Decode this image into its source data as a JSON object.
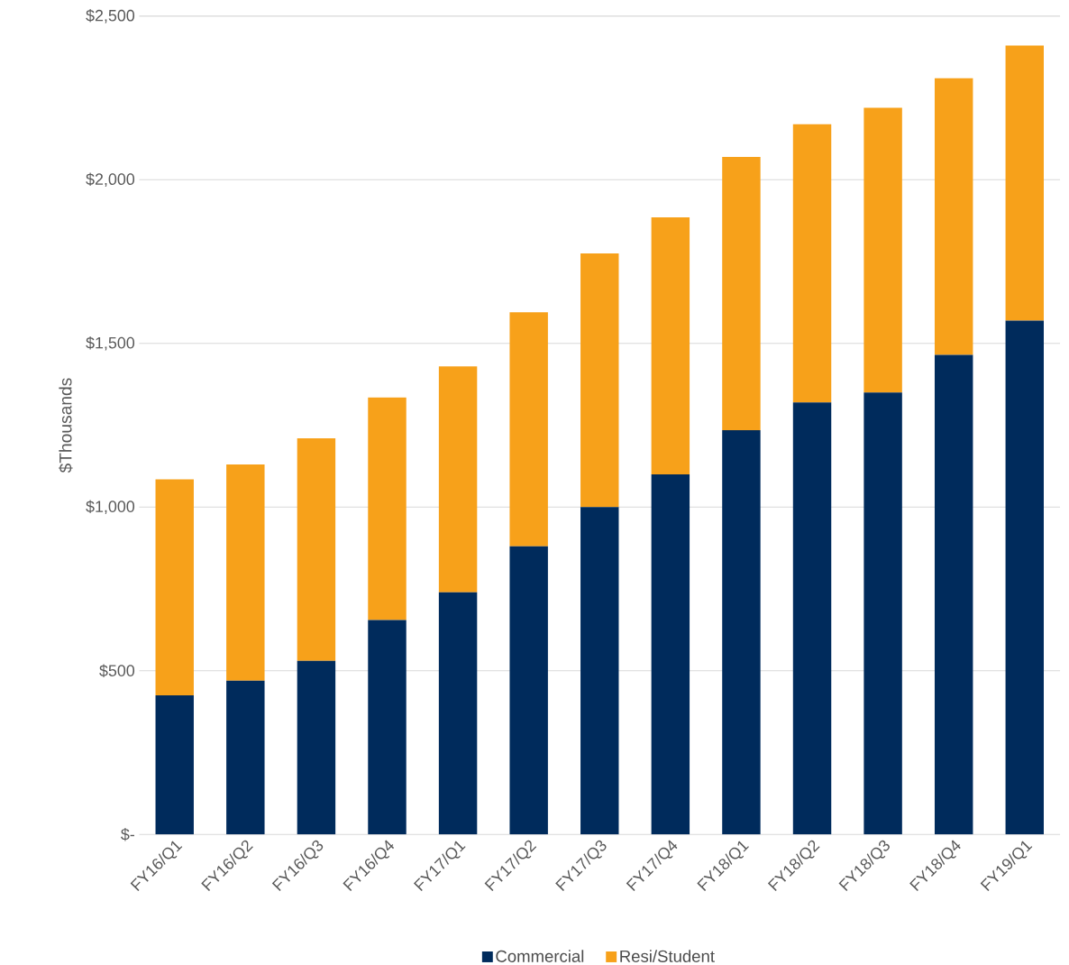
{
  "chart_data": {
    "type": "bar",
    "stacked": true,
    "ylabel": "$Thousands",
    "categories": [
      "FY16/Q1",
      "FY16/Q2",
      "FY16/Q3",
      "FY16/Q4",
      "FY17/Q1",
      "FY17/Q2",
      "FY17/Q3",
      "FY17/Q4",
      "FY18/Q1",
      "FY18/Q2",
      "FY18/Q3",
      "FY18/Q4",
      "FY19/Q1"
    ],
    "series": [
      {
        "name": "Commercial",
        "color": "#002b5c",
        "values": [
          425,
          470,
          530,
          655,
          740,
          880,
          1000,
          1100,
          1235,
          1320,
          1350,
          1465,
          1570
        ]
      },
      {
        "name": "Resi/Student",
        "color": "#f7a11a",
        "values": [
          660,
          660,
          680,
          680,
          690,
          715,
          775,
          785,
          835,
          850,
          870,
          845,
          840
        ]
      }
    ],
    "ylim": [
      0,
      2500
    ],
    "yticks": [
      {
        "value": 0,
        "label": "$-"
      },
      {
        "value": 500,
        "label": "$500"
      },
      {
        "value": 1000,
        "label": "$1,000"
      },
      {
        "value": 1500,
        "label": "$1,500"
      },
      {
        "value": 2000,
        "label": "$2,000"
      },
      {
        "value": 2500,
        "label": "$2,500"
      }
    ],
    "grid": "y",
    "legend": "bottom"
  }
}
